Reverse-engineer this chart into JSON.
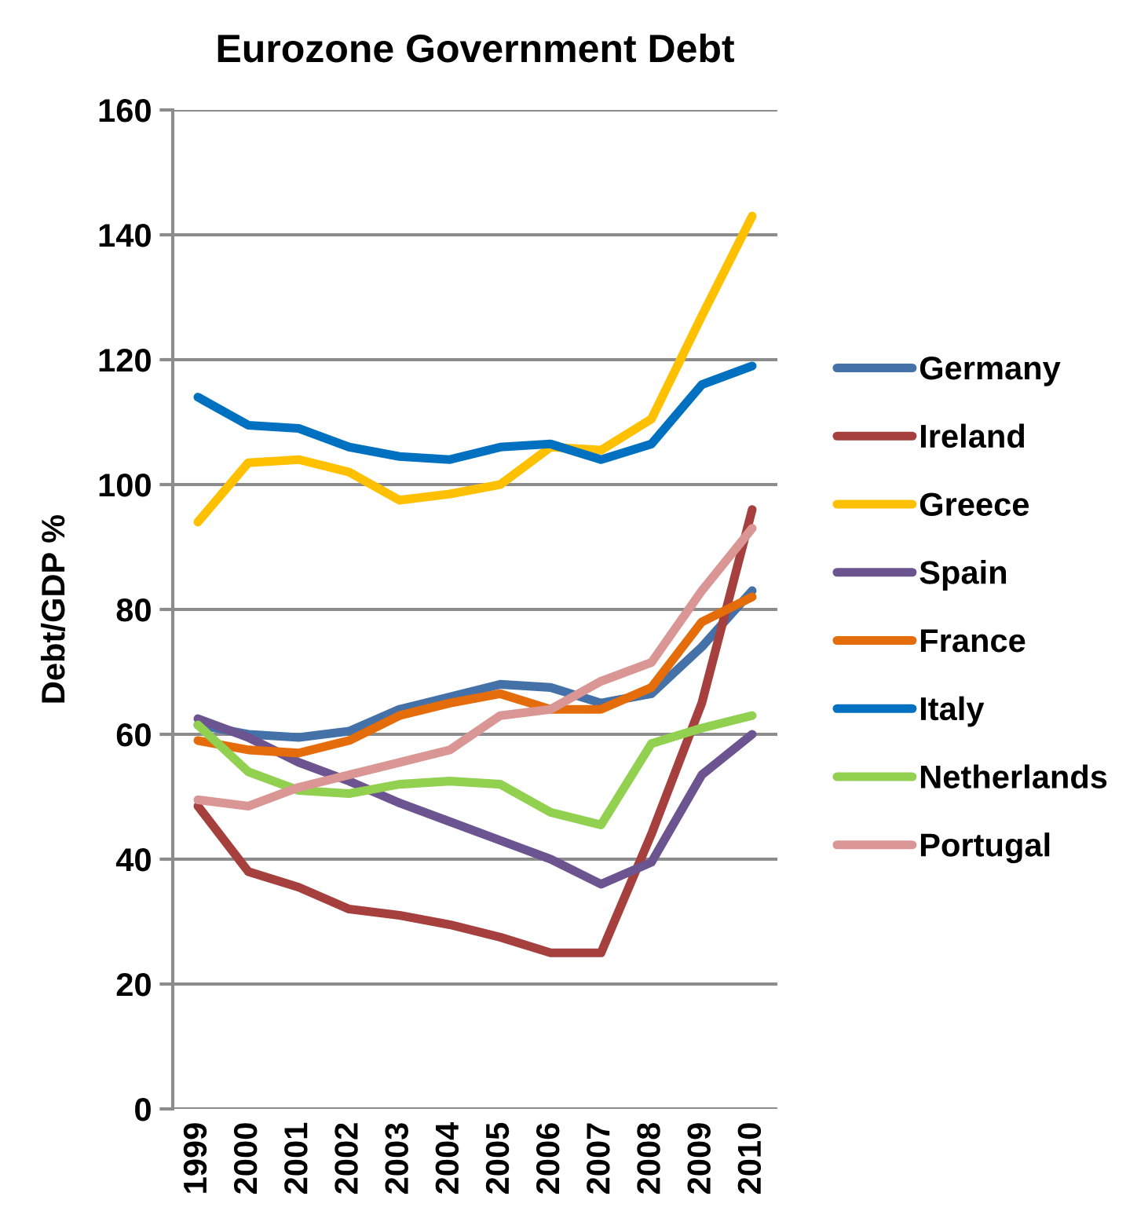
{
  "chart_data": {
    "type": "line",
    "title": "Eurozone Government Debt",
    "ylabel": "Debt/GDP %",
    "categories": [
      "1999",
      "2000",
      "2001",
      "2002",
      "2003",
      "2004",
      "2005",
      "2006",
      "2007",
      "2008",
      "2009",
      "2010"
    ],
    "ylim": [
      0,
      160
    ],
    "yticks": [
      0,
      20,
      40,
      60,
      80,
      100,
      120,
      140,
      160
    ],
    "grid": "y",
    "legend": "right",
    "marker": "none",
    "line_style": "solid",
    "series": [
      {
        "name": "Germany",
        "color": "#4472a8",
        "values": [
          61.5,
          60,
          59.5,
          60.5,
          64,
          66,
          68,
          67.5,
          65,
          66.5,
          74,
          83
        ]
      },
      {
        "name": "Ireland",
        "color": "#a5403e",
        "values": [
          48.5,
          38,
          35.5,
          32,
          31,
          29.5,
          27.5,
          25,
          25,
          44,
          65,
          96
        ]
      },
      {
        "name": "Greece",
        "color": "#ffc000",
        "values": [
          94,
          103.5,
          104,
          102,
          97.5,
          98.5,
          100,
          106,
          105.5,
          110.5,
          127,
          143
        ]
      },
      {
        "name": "Spain",
        "color": "#6b548f",
        "values": [
          62.5,
          59.5,
          55.5,
          52.5,
          49,
          46,
          43,
          40,
          36,
          39.5,
          53.5,
          60
        ]
      },
      {
        "name": "France",
        "color": "#e46c0a",
        "values": [
          59,
          57.5,
          57,
          59,
          63,
          65,
          66.5,
          64,
          64,
          67.5,
          78,
          82
        ]
      },
      {
        "name": "Italy",
        "color": "#0070c0",
        "values": [
          114,
          109.5,
          109,
          106,
          104.5,
          104,
          106,
          106.5,
          104,
          106.5,
          116,
          119
        ]
      },
      {
        "name": "Netherlands",
        "color": "#92d050",
        "values": [
          61.5,
          54,
          51,
          50.5,
          52,
          52.5,
          52,
          47.5,
          45.5,
          58.5,
          61,
          63
        ]
      },
      {
        "name": "Portugal",
        "color": "#d99694",
        "values": [
          49.5,
          48.5,
          51.5,
          53.5,
          55.5,
          57.5,
          63,
          64,
          68.5,
          71.5,
          83,
          93
        ]
      }
    ]
  }
}
